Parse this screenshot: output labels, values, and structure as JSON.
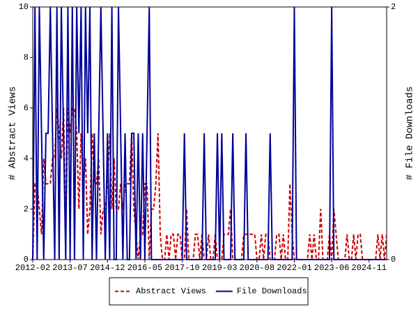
{
  "chart_data": {
    "type": "line",
    "y_label": "# Abstract Views",
    "y2_label": "# File Downloads",
    "x": [
      "2012-02",
      "2012-03",
      "2012-04",
      "2012-05",
      "2012-06",
      "2012-07",
      "2012-08",
      "2012-09",
      "2012-10",
      "2012-11",
      "2012-12",
      "2013-01",
      "2013-02",
      "2013-03",
      "2013-04",
      "2013-05",
      "2013-06",
      "2013-07",
      "2013-08",
      "2013-09",
      "2013-10",
      "2013-11",
      "2013-12",
      "2014-01",
      "2014-02",
      "2014-03",
      "2014-04",
      "2014-05",
      "2014-06",
      "2014-07",
      "2014-08",
      "2014-09",
      "2014-10",
      "2014-11",
      "2014-12",
      "2015-01",
      "2015-02",
      "2015-03",
      "2015-04",
      "2015-05",
      "2015-06",
      "2015-07",
      "2015-08",
      "2015-09",
      "2015-10",
      "2015-11",
      "2015-12",
      "2016-01",
      "2016-02",
      "2016-03",
      "2016-04",
      "2016-05",
      "2016-06",
      "2016-07",
      "2016-08",
      "2016-09",
      "2016-10",
      "2016-11",
      "2016-12",
      "2017-01",
      "2017-02",
      "2017-03",
      "2017-04",
      "2017-05",
      "2017-06",
      "2017-07",
      "2017-08",
      "2017-09",
      "2017-10",
      "2017-11",
      "2017-12",
      "2018-01",
      "2018-02",
      "2018-03",
      "2018-04",
      "2018-05",
      "2018-06",
      "2018-07",
      "2018-08",
      "2018-09",
      "2018-10",
      "2018-11",
      "2018-12",
      "2019-01",
      "2019-02",
      "2019-03",
      "2019-04",
      "2019-05",
      "2019-06",
      "2019-07",
      "2019-08",
      "2019-09",
      "2019-10",
      "2019-11",
      "2019-12",
      "2020-01",
      "2020-02",
      "2020-03",
      "2020-04",
      "2020-05",
      "2020-06",
      "2020-07",
      "2020-08",
      "2020-09",
      "2020-10",
      "2020-11",
      "2020-12",
      "2021-01",
      "2021-02",
      "2021-03",
      "2021-04",
      "2021-05",
      "2021-06",
      "2021-07",
      "2021-08",
      "2021-09",
      "2021-10",
      "2021-11",
      "2021-12",
      "2022-01",
      "2022-02",
      "2022-03",
      "2022-04",
      "2022-05",
      "2022-06",
      "2022-07",
      "2022-08",
      "2022-09",
      "2022-10",
      "2022-11",
      "2022-12",
      "2023-01",
      "2023-02",
      "2023-03",
      "2023-04",
      "2023-05",
      "2023-06",
      "2023-07",
      "2023-08",
      "2023-09",
      "2023-10",
      "2023-11",
      "2023-12",
      "2024-01",
      "2024-02",
      "2024-03",
      "2024-04",
      "2024-05",
      "2024-06",
      "2024-07",
      "2024-08",
      "2024-09",
      "2024-10",
      "2024-11",
      "2024-12",
      "2025-01",
      "2025-02",
      "2025-03",
      "2025-04",
      "2025-05",
      "2025-06",
      "2025-07"
    ],
    "series": [
      {
        "name": "Abstract Views",
        "color": "#cc0000",
        "axis": "y",
        "dash": true,
        "values": [
          0,
          3,
          3,
          2,
          1,
          4,
          3,
          3,
          3,
          4,
          4,
          6,
          5,
          4,
          6,
          1,
          6,
          5,
          6,
          6,
          5,
          2,
          5,
          3,
          4,
          1,
          2,
          5,
          3,
          3,
          4,
          1,
          2,
          2,
          3,
          5,
          2,
          4,
          2,
          2,
          3,
          2,
          3,
          3,
          3,
          5,
          2,
          1,
          0,
          1,
          1,
          3,
          3,
          0,
          2,
          2,
          3,
          5,
          1,
          0,
          0,
          1,
          0,
          1,
          1,
          0,
          1,
          1,
          0,
          0,
          2,
          0,
          0,
          0,
          1,
          1,
          0,
          1,
          0,
          0,
          1,
          0,
          0,
          1,
          0,
          0,
          0,
          1,
          1,
          1,
          2,
          0,
          0,
          0,
          0,
          0,
          1,
          1,
          1,
          1,
          1,
          1,
          0,
          0,
          1,
          0,
          1,
          1,
          0,
          0,
          0,
          1,
          1,
          0,
          1,
          0,
          0,
          3,
          1,
          0,
          0,
          0,
          0,
          0,
          0,
          0,
          1,
          0,
          1,
          0,
          0,
          2,
          0,
          0,
          0,
          1,
          0,
          2,
          1,
          0,
          0,
          0,
          0,
          1,
          0,
          0,
          1,
          0,
          1,
          1,
          0,
          0,
          0,
          0,
          0,
          0,
          0,
          1,
          0,
          1,
          0,
          1
        ]
      },
      {
        "name": "File Downloads",
        "color": "#000099",
        "axis": "y2",
        "dash": false,
        "values": [
          0,
          2,
          0,
          2,
          1,
          0,
          1,
          1,
          2,
          1,
          0,
          2,
          0,
          2,
          1,
          0,
          2,
          0,
          2,
          0,
          2,
          1,
          2,
          0,
          2,
          1,
          2,
          0,
          1,
          0,
          1,
          2,
          1,
          0,
          1,
          0,
          2,
          0,
          0,
          2,
          1,
          0,
          1,
          0,
          0,
          1,
          1,
          0,
          1,
          0,
          1,
          0,
          1,
          2,
          0,
          0,
          0,
          0,
          0,
          0,
          0,
          0,
          0,
          0,
          0,
          0,
          0,
          0,
          0,
          1,
          0,
          0,
          0,
          0,
          0,
          0,
          0,
          0,
          1,
          0,
          0,
          0,
          0,
          0,
          1,
          0,
          1,
          0,
          0,
          0,
          0,
          1,
          0,
          0,
          0,
          0,
          0,
          1,
          0,
          0,
          0,
          0,
          0,
          0,
          0,
          0,
          0,
          0,
          1,
          0,
          0,
          0,
          0,
          0,
          0,
          0,
          0,
          0,
          0,
          2,
          0,
          0,
          0,
          0,
          0,
          0,
          0,
          0,
          0,
          0,
          0,
          0,
          0,
          0,
          0,
          0,
          2,
          0,
          0,
          0,
          0,
          0,
          0,
          0,
          0,
          0,
          0,
          0,
          0,
          0,
          0,
          0,
          0,
          0,
          0,
          0,
          0,
          0,
          0,
          0,
          0,
          0
        ]
      }
    ],
    "xlim": [
      "2012-02",
      "2025-07"
    ],
    "xticks": [
      "2012-02",
      "2013-07",
      "2014-12",
      "2016-05",
      "2017-10",
      "2019-03",
      "2020-08",
      "2022-01",
      "2023-06",
      "2024-11"
    ],
    "ylim": [
      0,
      10
    ],
    "yticks": [
      0,
      2,
      4,
      6,
      8,
      10
    ],
    "y2lim": [
      0,
      2
    ],
    "y2ticks": [
      0,
      2
    ],
    "grid": false,
    "legend": "bottom"
  }
}
